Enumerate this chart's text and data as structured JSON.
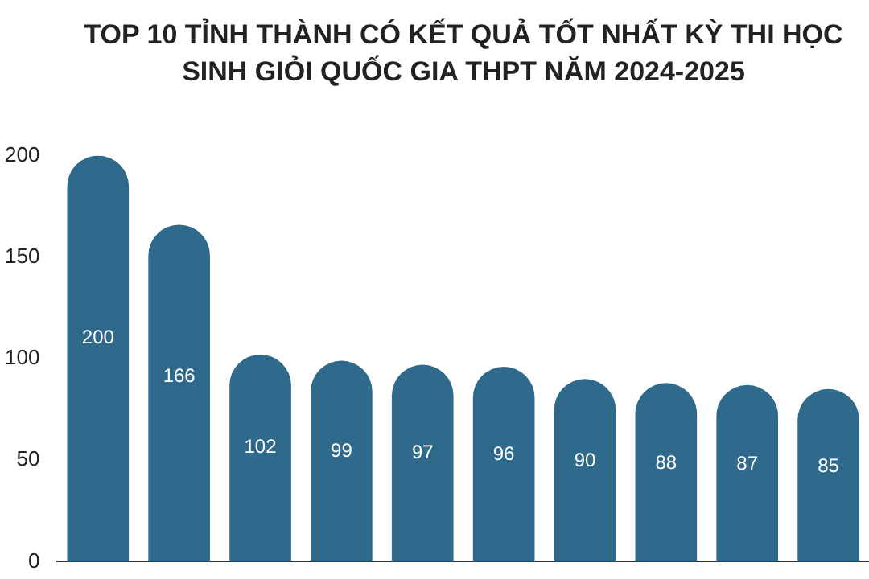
{
  "chart_data": {
    "type": "bar",
    "title": "TOP 10 TỈNH THÀNH CÓ KẾT QUẢ TỐT NHẤT KỲ THI HỌC SINH GIỎI QUỐC GIA THPT NĂM 2024-2025",
    "categories": [
      null,
      null,
      null,
      null,
      null,
      null,
      null,
      null,
      null,
      null
    ],
    "values": [
      200,
      166,
      102,
      99,
      97,
      96,
      90,
      88,
      87,
      85
    ],
    "color": "#2f6a8c",
    "ylim": [
      0,
      200
    ],
    "yticks": [
      0,
      50,
      100,
      150,
      200
    ],
    "grid": false,
    "legend": false,
    "data_labels": true
  }
}
